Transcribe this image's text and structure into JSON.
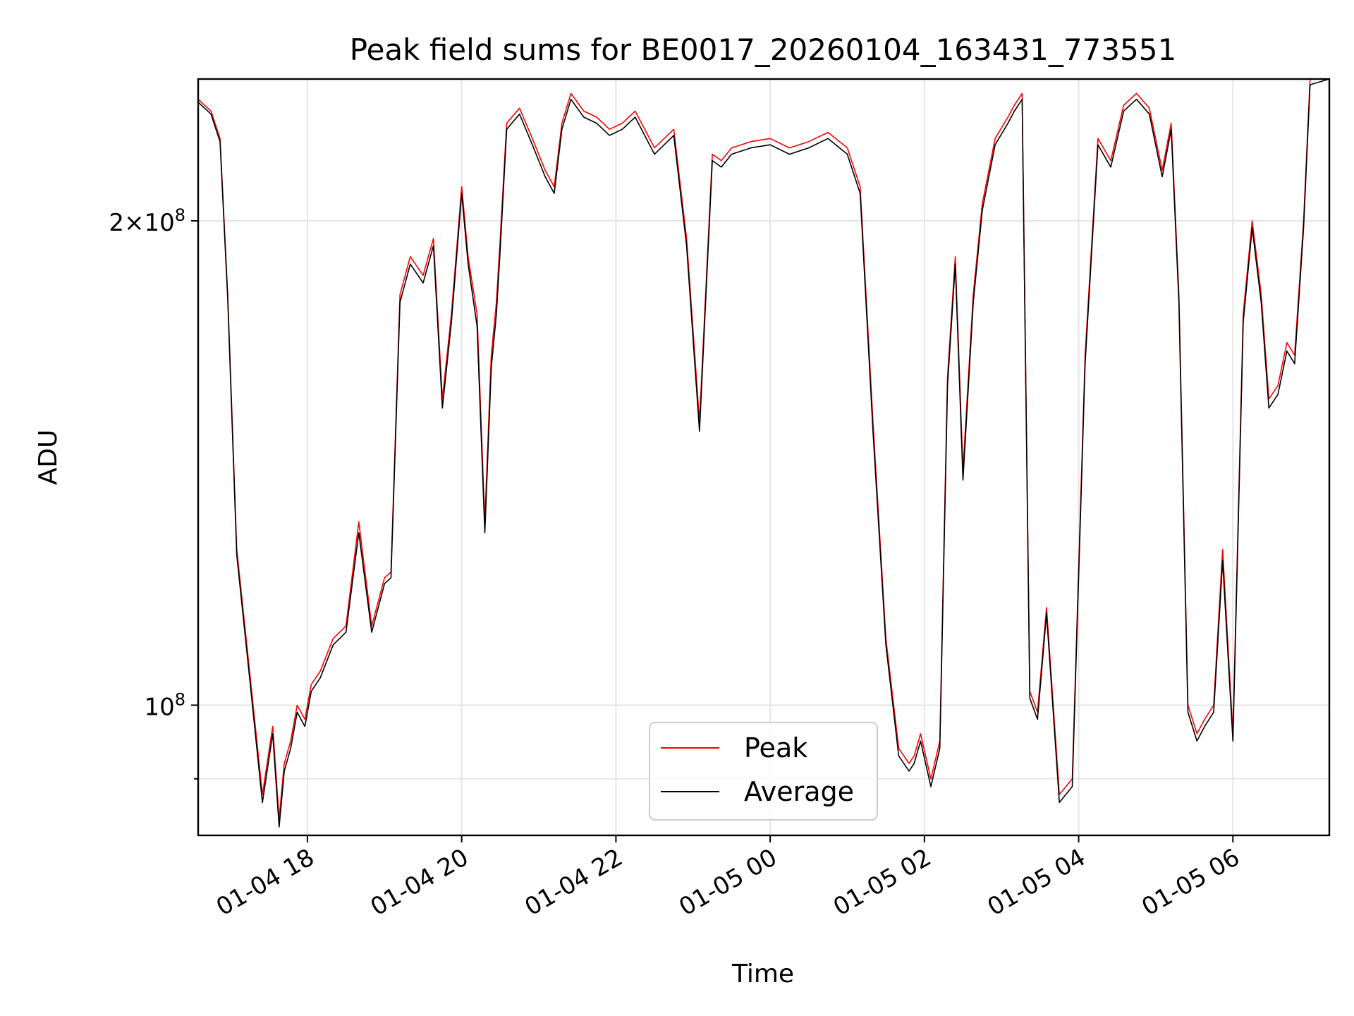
{
  "chart_data": {
    "type": "line",
    "title": "Peak field sums for BE0017_20260104_163431_773551",
    "xlabel": "Time",
    "ylabel": "ADU",
    "y_scale": "log",
    "ylim": [
      83000000,
      245000000
    ],
    "xlim": [
      "2026-01-04 16:35",
      "2026-01-05 07:15"
    ],
    "x_ticks": [
      "01-04 18",
      "01-04 20",
      "01-04 22",
      "01-05 00",
      "01-05 02",
      "01-05 04",
      "01-05 06"
    ],
    "x_tick_times": [
      "2026-01-04 18:00",
      "2026-01-04 20:00",
      "2026-01-04 22:00",
      "2026-01-05 00:00",
      "2026-01-05 02:00",
      "2026-01-05 04:00",
      "2026-01-05 06:00"
    ],
    "y_ticks": [
      {
        "base": "10",
        "exp": "8",
        "mantissa": "",
        "value": 100000000
      },
      {
        "base": "10",
        "exp": "8",
        "mantissa": "2",
        "value": 200000000
      }
    ],
    "y_minor_ticks": [
      90000000
    ],
    "grid": true,
    "legend_position": "lower center",
    "colors": {
      "peak": "#ff0000",
      "average": "#000000"
    },
    "series": [
      {
        "name": "Peak",
        "color": "#ff0000",
        "x": [
          "2026-01-04 16:35",
          "2026-01-04 16:45",
          "2026-01-04 16:52",
          "2026-01-04 16:58",
          "2026-01-04 17:05",
          "2026-01-04 17:15",
          "2026-01-04 17:25",
          "2026-01-04 17:33",
          "2026-01-04 17:38",
          "2026-01-04 17:42",
          "2026-01-04 17:47",
          "2026-01-04 17:52",
          "2026-01-04 17:58",
          "2026-01-04 18:03",
          "2026-01-04 18:10",
          "2026-01-04 18:20",
          "2026-01-04 18:30",
          "2026-01-04 18:40",
          "2026-01-04 18:50",
          "2026-01-04 19:00",
          "2026-01-04 19:05",
          "2026-01-04 19:12",
          "2026-01-04 19:20",
          "2026-01-04 19:30",
          "2026-01-04 19:38",
          "2026-01-04 19:45",
          "2026-01-04 19:52",
          "2026-01-04 20:00",
          "2026-01-04 20:05",
          "2026-01-04 20:12",
          "2026-01-04 20:18",
          "2026-01-04 20:23",
          "2026-01-04 20:27",
          "2026-01-04 20:30",
          "2026-01-04 20:35",
          "2026-01-04 20:45",
          "2026-01-04 20:55",
          "2026-01-04 21:05",
          "2026-01-04 21:12",
          "2026-01-04 21:18",
          "2026-01-04 21:25",
          "2026-01-04 21:35",
          "2026-01-04 21:45",
          "2026-01-04 21:55",
          "2026-01-04 22:05",
          "2026-01-04 22:15",
          "2026-01-04 22:30",
          "2026-01-04 22:45",
          "2026-01-04 22:55",
          "2026-01-04 23:05",
          "2026-01-04 23:15",
          "2026-01-04 23:22",
          "2026-01-04 23:30",
          "2026-01-04 23:45",
          "2026-01-05 00:00",
          "2026-01-05 00:15",
          "2026-01-05 00:30",
          "2026-01-05 00:45",
          "2026-01-05 01:00",
          "2026-01-05 01:10",
          "2026-01-05 01:20",
          "2026-01-05 01:30",
          "2026-01-05 01:40",
          "2026-01-05 01:48",
          "2026-01-05 01:52",
          "2026-01-05 01:57",
          "2026-01-05 02:05",
          "2026-01-05 02:12",
          "2026-01-05 02:18",
          "2026-01-05 02:24",
          "2026-01-05 02:30",
          "2026-01-05 02:38",
          "2026-01-05 02:45",
          "2026-01-05 02:55",
          "2026-01-05 03:05",
          "2026-01-05 03:10",
          "2026-01-05 03:16",
          "2026-01-05 03:22",
          "2026-01-05 03:28",
          "2026-01-05 03:35",
          "2026-01-05 03:45",
          "2026-01-05 03:55",
          "2026-01-05 04:05",
          "2026-01-05 04:15",
          "2026-01-05 04:25",
          "2026-01-05 04:35",
          "2026-01-05 04:45",
          "2026-01-05 04:55",
          "2026-01-05 05:05",
          "2026-01-05 05:12",
          "2026-01-05 05:18",
          "2026-01-05 05:25",
          "2026-01-05 05:32",
          "2026-01-05 05:38",
          "2026-01-05 05:45",
          "2026-01-05 05:52",
          "2026-01-05 06:00",
          "2026-01-05 06:08",
          "2026-01-05 06:15",
          "2026-01-05 06:22",
          "2026-01-05 06:28",
          "2026-01-05 06:35",
          "2026-01-05 06:42",
          "2026-01-05 06:48",
          "2026-01-05 06:55",
          "2026-01-05 07:00",
          "2026-01-05 07:15"
        ],
        "y": [
          238000000,
          234000000,
          225000000,
          180000000,
          125000000,
          105000000,
          88000000,
          97000000,
          85000000,
          92000000,
          95000000,
          100000000,
          98000000,
          103000000,
          105000000,
          110000000,
          112000000,
          130000000,
          112000000,
          120000000,
          121000000,
          180000000,
          190000000,
          185000000,
          195000000,
          155000000,
          175000000,
          210000000,
          190000000,
          175000000,
          130000000,
          165000000,
          178000000,
          195000000,
          230000000,
          235000000,
          225000000,
          215000000,
          210000000,
          230000000,
          240000000,
          234000000,
          232000000,
          228000000,
          230000000,
          234000000,
          222000000,
          228000000,
          195000000,
          150000000,
          220000000,
          218000000,
          222000000,
          224000000,
          225000000,
          222000000,
          224000000,
          227000000,
          222000000,
          210000000,
          150000000,
          110000000,
          94000000,
          92000000,
          93000000,
          96000000,
          90000000,
          95000000,
          160000000,
          190000000,
          140000000,
          180000000,
          205000000,
          225000000,
          232000000,
          236000000,
          240000000,
          102000000,
          99000000,
          115000000,
          88000000,
          90000000,
          165000000,
          225000000,
          218000000,
          236000000,
          240000000,
          235000000,
          215000000,
          230000000,
          180000000,
          100000000,
          96000000,
          98000000,
          100000000,
          125000000,
          96000000,
          175000000,
          200000000,
          180000000,
          155000000,
          158000000,
          168000000,
          165000000,
          200000000,
          245000000,
          245000000
        ]
      },
      {
        "name": "Average",
        "color": "#000000",
        "x": [
          "2026-01-04 16:35",
          "2026-01-04 16:45",
          "2026-01-04 16:52",
          "2026-01-04 16:58",
          "2026-01-04 17:05",
          "2026-01-04 17:15",
          "2026-01-04 17:25",
          "2026-01-04 17:33",
          "2026-01-04 17:38",
          "2026-01-04 17:42",
          "2026-01-04 17:47",
          "2026-01-04 17:52",
          "2026-01-04 17:58",
          "2026-01-04 18:03",
          "2026-01-04 18:10",
          "2026-01-04 18:20",
          "2026-01-04 18:30",
          "2026-01-04 18:40",
          "2026-01-04 18:50",
          "2026-01-04 19:00",
          "2026-01-04 19:05",
          "2026-01-04 19:12",
          "2026-01-04 19:20",
          "2026-01-04 19:30",
          "2026-01-04 19:38",
          "2026-01-04 19:45",
          "2026-01-04 19:52",
          "2026-01-04 20:00",
          "2026-01-04 20:05",
          "2026-01-04 20:12",
          "2026-01-04 20:18",
          "2026-01-04 20:23",
          "2026-01-04 20:27",
          "2026-01-04 20:30",
          "2026-01-04 20:35",
          "2026-01-04 20:45",
          "2026-01-04 20:55",
          "2026-01-04 21:05",
          "2026-01-04 21:12",
          "2026-01-04 21:18",
          "2026-01-04 21:25",
          "2026-01-04 21:35",
          "2026-01-04 21:45",
          "2026-01-04 21:55",
          "2026-01-04 22:05",
          "2026-01-04 22:15",
          "2026-01-04 22:30",
          "2026-01-04 22:45",
          "2026-01-04 22:55",
          "2026-01-04 23:05",
          "2026-01-04 23:15",
          "2026-01-04 23:22",
          "2026-01-04 23:30",
          "2026-01-04 23:45",
          "2026-01-05 00:00",
          "2026-01-05 00:15",
          "2026-01-05 00:30",
          "2026-01-05 00:45",
          "2026-01-05 01:00",
          "2026-01-05 01:10",
          "2026-01-05 01:20",
          "2026-01-05 01:30",
          "2026-01-05 01:40",
          "2026-01-05 01:48",
          "2026-01-05 01:52",
          "2026-01-05 01:57",
          "2026-01-05 02:05",
          "2026-01-05 02:12",
          "2026-01-05 02:18",
          "2026-01-05 02:24",
          "2026-01-05 02:30",
          "2026-01-05 02:38",
          "2026-01-05 02:45",
          "2026-01-05 02:55",
          "2026-01-05 03:05",
          "2026-01-05 03:10",
          "2026-01-05 03:16",
          "2026-01-05 03:22",
          "2026-01-05 03:28",
          "2026-01-05 03:35",
          "2026-01-05 03:45",
          "2026-01-05 03:55",
          "2026-01-05 04:05",
          "2026-01-05 04:15",
          "2026-01-05 04:25",
          "2026-01-05 04:35",
          "2026-01-05 04:45",
          "2026-01-05 04:55",
          "2026-01-05 05:05",
          "2026-01-05 05:12",
          "2026-01-05 05:18",
          "2026-01-05 05:25",
          "2026-01-05 05:32",
          "2026-01-05 05:38",
          "2026-01-05 05:45",
          "2026-01-05 05:52",
          "2026-01-05 06:00",
          "2026-01-05 06:08",
          "2026-01-05 06:15",
          "2026-01-05 06:22",
          "2026-01-05 06:28",
          "2026-01-05 06:35",
          "2026-01-05 06:42",
          "2026-01-05 06:48",
          "2026-01-05 06:55",
          "2026-01-05 07:00",
          "2026-01-05 07:15"
        ],
        "y": [
          237000000,
          233000000,
          224000000,
          179000000,
          124000000,
          104000000,
          87000000,
          96000000,
          84000000,
          91000000,
          94000000,
          99000000,
          97000000,
          102000000,
          104000000,
          109000000,
          111000000,
          128000000,
          111000000,
          119000000,
          120000000,
          178000000,
          188000000,
          183000000,
          193000000,
          153000000,
          173000000,
          208000000,
          188000000,
          172000000,
          128000000,
          162000000,
          175000000,
          192000000,
          228000000,
          233000000,
          223000000,
          213000000,
          208000000,
          228000000,
          238000000,
          232000000,
          230000000,
          226000000,
          228000000,
          232000000,
          220000000,
          226000000,
          193000000,
          148000000,
          218000000,
          216000000,
          220000000,
          222000000,
          223000000,
          220000000,
          222000000,
          225000000,
          220000000,
          208000000,
          148000000,
          109000000,
          93000000,
          91000000,
          92000000,
          95000000,
          89000000,
          94000000,
          158000000,
          188000000,
          138000000,
          178000000,
          203000000,
          223000000,
          230000000,
          234000000,
          238000000,
          101000000,
          98000000,
          114000000,
          87000000,
          89000000,
          163000000,
          223000000,
          216000000,
          234000000,
          238000000,
          233000000,
          213000000,
          228000000,
          178000000,
          99000000,
          95000000,
          97000000,
          99000000,
          123000000,
          95000000,
          173000000,
          198000000,
          178000000,
          153000000,
          156000000,
          166000000,
          163000000,
          198000000,
          243000000,
          245000000
        ]
      }
    ]
  }
}
